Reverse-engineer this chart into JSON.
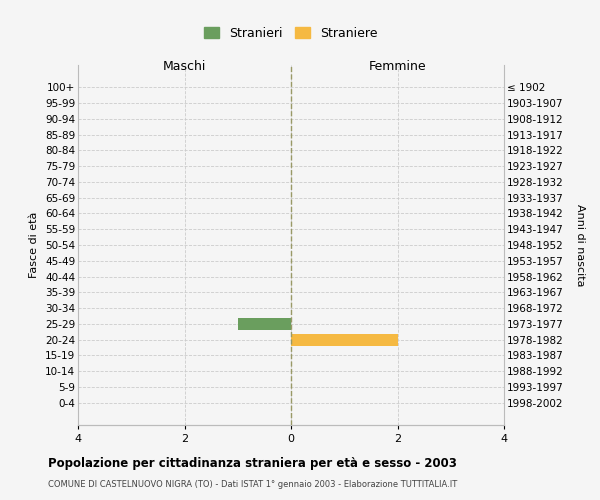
{
  "age_groups": [
    "100+",
    "95-99",
    "90-94",
    "85-89",
    "80-84",
    "75-79",
    "70-74",
    "65-69",
    "60-64",
    "55-59",
    "50-54",
    "45-49",
    "40-44",
    "35-39",
    "30-34",
    "25-29",
    "20-24",
    "15-19",
    "10-14",
    "5-9",
    "0-4"
  ],
  "birth_years": [
    "≤ 1902",
    "1903-1907",
    "1908-1912",
    "1913-1917",
    "1918-1922",
    "1923-1927",
    "1928-1932",
    "1933-1937",
    "1938-1942",
    "1943-1947",
    "1948-1952",
    "1953-1957",
    "1958-1962",
    "1963-1967",
    "1968-1972",
    "1973-1977",
    "1978-1982",
    "1983-1987",
    "1988-1992",
    "1993-1997",
    "1998-2002"
  ],
  "males": [
    0,
    0,
    0,
    0,
    0,
    0,
    0,
    0,
    0,
    0,
    0,
    0,
    0,
    0,
    0,
    1,
    0,
    0,
    0,
    0,
    0
  ],
  "females": [
    0,
    0,
    0,
    0,
    0,
    0,
    0,
    0,
    0,
    0,
    0,
    0,
    0,
    0,
    0,
    0,
    2,
    0,
    0,
    0,
    0
  ],
  "male_color": "#6a9e5e",
  "female_color": "#f5b942",
  "xlim": 4,
  "xlabel_left": "Maschi",
  "xlabel_right": "Femmine",
  "ylabel_left": "Fasce di età",
  "ylabel_right": "Anni di nascita",
  "legend_male": "Stranieri",
  "legend_female": "Straniere",
  "title": "Popolazione per cittadinanza straniera per età e sesso - 2003",
  "subtitle": "COMUNE DI CASTELNUOVO NIGRA (TO) - Dati ISTAT 1° gennaio 2003 - Elaborazione TUTTITALIA.IT",
  "bg_color": "#f5f5f5",
  "grid_color": "#cccccc",
  "bar_height": 0.75
}
